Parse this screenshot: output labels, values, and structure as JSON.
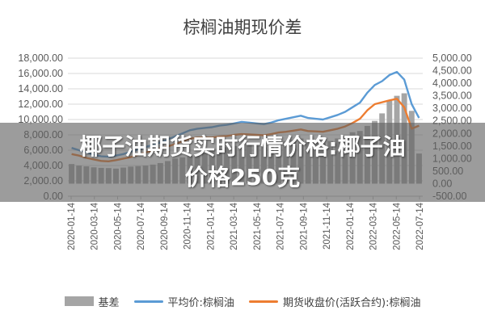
{
  "chart_data": {
    "type": "bar+line",
    "title": "棕榈油期现价差",
    "y_left": {
      "ticks": [
        "0.00",
        "2,000.00",
        "4,000.00",
        "6,000.00",
        "8,000.00",
        "10,000.00",
        "12,000.00",
        "14,000.00",
        "16,000.00",
        "18,000.00"
      ],
      "ylim": [
        0,
        18000
      ]
    },
    "y_right": {
      "ticks": [
        "-500.00",
        "0.00",
        "500.00",
        "1,000.00",
        "1,500.00",
        "2,000.00",
        "2,500.00",
        "3,000.00",
        "3,500.00",
        "4,000.00",
        "4,500.00",
        "5,000.00"
      ],
      "ylim": [
        -500,
        5000
      ]
    },
    "x_ticks": [
      "2020-01-14",
      "2020-03-14",
      "2020-05-14",
      "2020-07-14",
      "2020-09-14",
      "2020-11-14",
      "2021-01-14",
      "2021-03-14",
      "2021-05-14",
      "2021-07-14",
      "2021-09-14",
      "2021-11-14",
      "2022-01-14",
      "2022-03-14",
      "2022-05-14",
      "2022-07-14"
    ],
    "series": [
      {
        "name": "基差",
        "axis": "right",
        "kind": "bar",
        "color": "#a5a5a5",
        "values": [
          780,
          720,
          690,
          650,
          630,
          620,
          600,
          640,
          680,
          700,
          720,
          760,
          820,
          900,
          1000,
          1050,
          1100,
          1150,
          1250,
          1350,
          1400,
          1450,
          1500,
          1600,
          1550,
          1500,
          1450,
          1500,
          1600,
          1700,
          1750,
          1800,
          1700,
          1650,
          1600,
          1700,
          1800,
          1900,
          2050,
          2100,
          2300,
          2500,
          2800,
          3300,
          3500,
          3600,
          2900,
          1200
        ]
      },
      {
        "name": "平均价:棕榈油",
        "axis": "left",
        "kind": "line",
        "color": "#5b9bd5",
        "values": [
          6300,
          6000,
          5700,
          5400,
          5200,
          5150,
          5300,
          5500,
          5800,
          6100,
          6400,
          6700,
          7000,
          7400,
          7800,
          8200,
          8600,
          8800,
          8900,
          9000,
          9200,
          9300,
          9500,
          9700,
          9600,
          9500,
          9400,
          9600,
          9900,
          10100,
          10300,
          10500,
          10200,
          10100,
          10000,
          10300,
          10600,
          11000,
          11600,
          12200,
          13500,
          14500,
          15000,
          15800,
          16200,
          15200,
          12000,
          10200
        ]
      },
      {
        "name": "期货收盘价(活跃合约):棕榈油",
        "axis": "left",
        "kind": "line",
        "color": "#ed7d31",
        "values": [
          5500,
          5300,
          5000,
          4800,
          4600,
          4550,
          4700,
          4900,
          5100,
          5400,
          5700,
          5950,
          6200,
          6500,
          6800,
          7150,
          7500,
          7650,
          7650,
          7650,
          7800,
          7850,
          8000,
          8100,
          8050,
          8000,
          7950,
          8100,
          8300,
          8400,
          8550,
          8700,
          8500,
          8450,
          8400,
          8600,
          8800,
          9100,
          9550,
          10100,
          11200,
          12000,
          12250,
          12500,
          12700,
          11600,
          8800,
          9200
        ]
      }
    ]
  },
  "banner": {
    "line1": "椰子油期货实时行情价格:椰子油",
    "line2": "价格250克"
  },
  "legend": [
    {
      "label": "基差",
      "color": "#a5a5a5",
      "shape": "box"
    },
    {
      "label": "平均价:棕榈油",
      "color": "#5b9bd5",
      "shape": "line"
    },
    {
      "label": "期货收盘价(活跃合约):棕榈油",
      "color": "#ed7d31",
      "shape": "line"
    }
  ]
}
